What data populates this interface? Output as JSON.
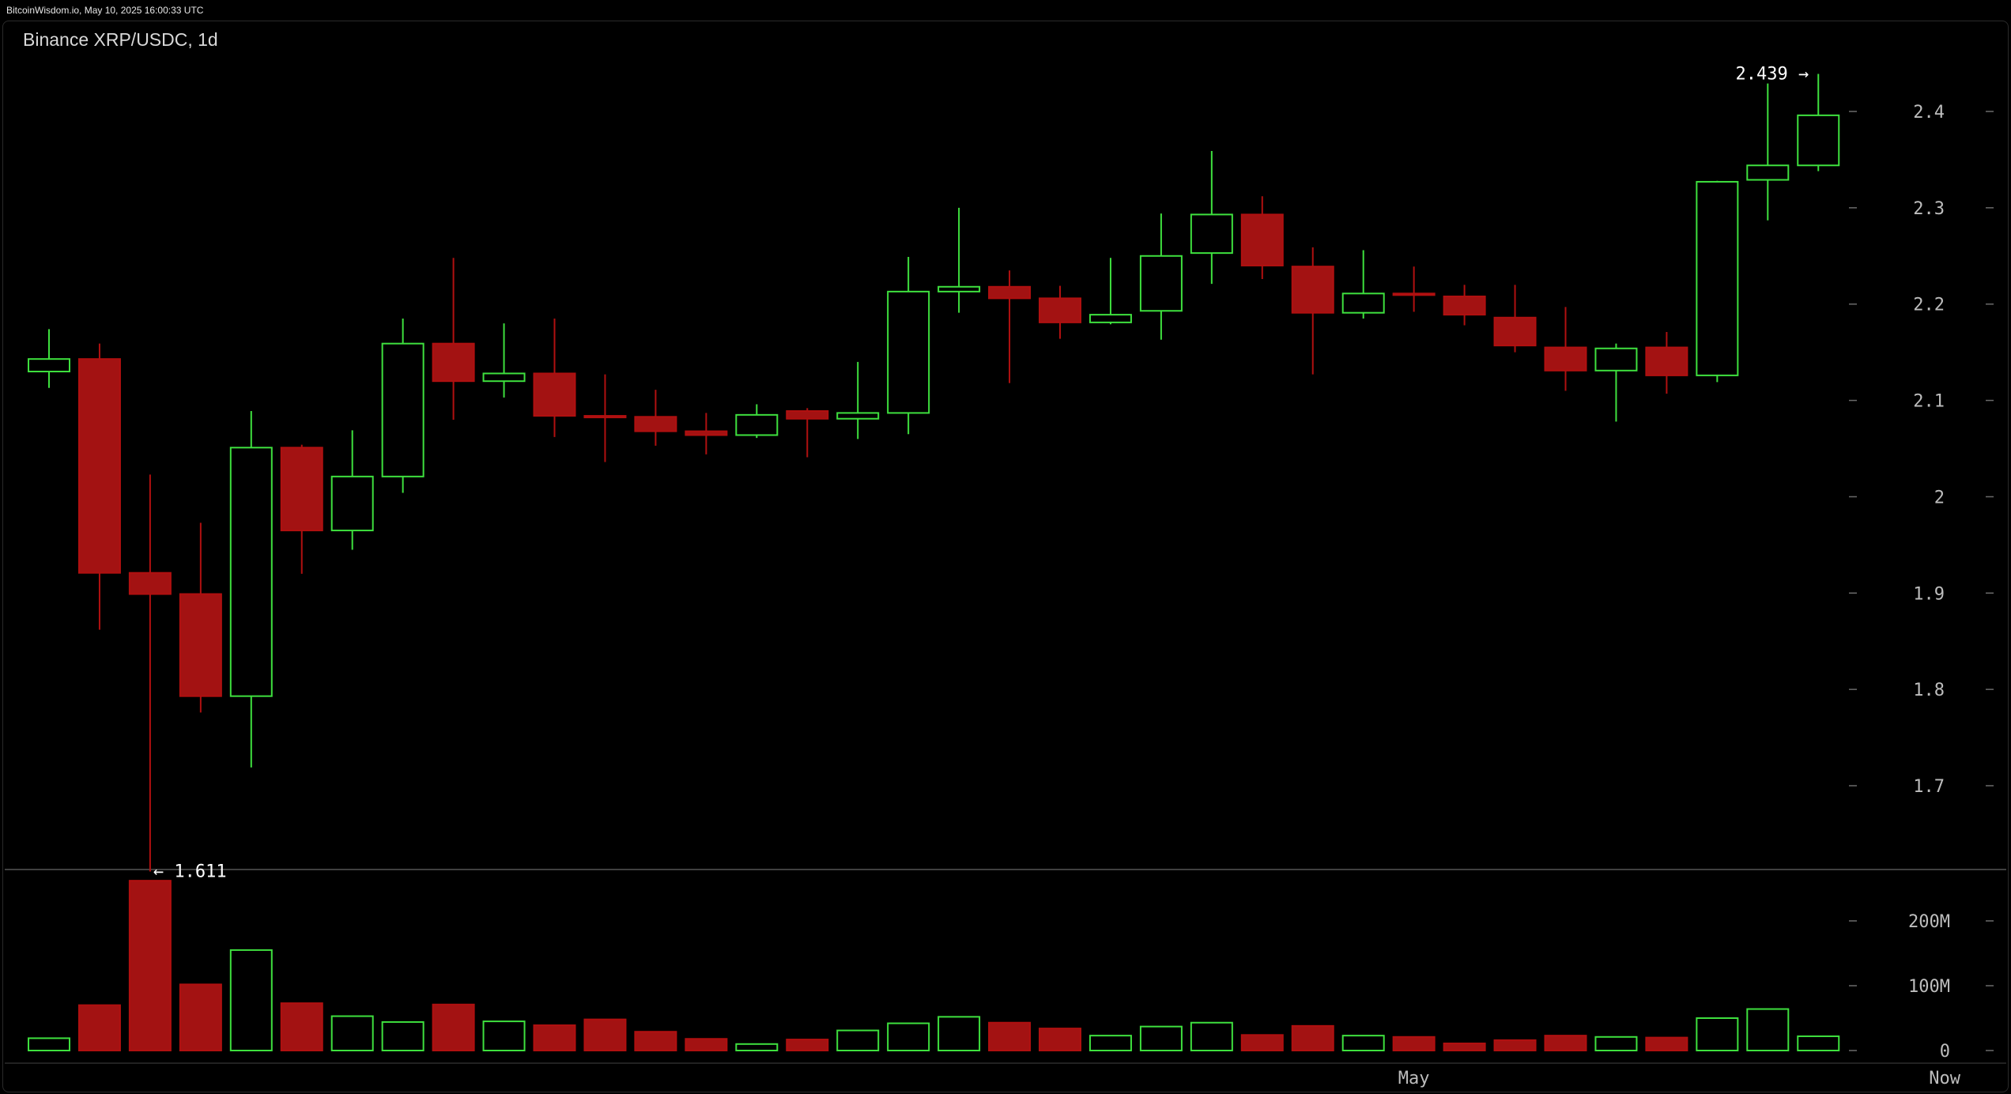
{
  "header": {
    "source_stamp": "BitcoinWisdom.io, May 10, 2025 16:00:33 UTC"
  },
  "title": "Binance XRP/USDC, 1d",
  "colors": {
    "up": "#3ee03e",
    "down": "#b01010",
    "down_fill": "#a31212",
    "axis_text": "#bdbdbd",
    "background": "#000000",
    "separator": "#555555"
  },
  "chart_data": {
    "type": "candlestick",
    "price_ticks": [
      "2.4",
      "2.3",
      "2.2",
      "2.1",
      "2",
      "1.9",
      "1.8",
      "1.7"
    ],
    "price_tick_values": [
      2.4,
      2.3,
      2.2,
      2.1,
      2.0,
      1.9,
      1.8,
      1.7
    ],
    "volume_ticks": [
      "200M",
      "100M",
      "0"
    ],
    "volume_tick_values": [
      200,
      100,
      0
    ],
    "volume_unit": "M",
    "x_labels": [
      "May",
      "Now"
    ],
    "x_label_candle_index": [
      27,
      37.5
    ],
    "annotations": {
      "high": "2.439 →",
      "low": "← 1.611",
      "high_value": 2.439,
      "low_value": 1.611
    },
    "candles": [
      {
        "o": 2.13,
        "h": 2.174,
        "l": 2.113,
        "c": 2.143,
        "v": 19
      },
      {
        "o": 2.143,
        "h": 2.159,
        "l": 1.862,
        "c": 1.921,
        "v": 70
      },
      {
        "o": 1.921,
        "h": 2.023,
        "l": 1.611,
        "c": 1.899,
        "v": 262
      },
      {
        "o": 1.899,
        "h": 1.973,
        "l": 1.776,
        "c": 1.793,
        "v": 102
      },
      {
        "o": 1.793,
        "h": 2.089,
        "l": 1.719,
        "c": 2.051,
        "v": 155
      },
      {
        "o": 2.051,
        "h": 2.054,
        "l": 1.92,
        "c": 1.965,
        "v": 73
      },
      {
        "o": 1.965,
        "h": 2.069,
        "l": 1.945,
        "c": 2.021,
        "v": 53
      },
      {
        "o": 2.021,
        "h": 2.185,
        "l": 2.004,
        "c": 2.159,
        "v": 44
      },
      {
        "o": 2.159,
        "h": 2.248,
        "l": 2.08,
        "c": 2.12,
        "v": 71
      },
      {
        "o": 2.12,
        "h": 2.18,
        "l": 2.103,
        "c": 2.128,
        "v": 45
      },
      {
        "o": 2.128,
        "h": 2.185,
        "l": 2.062,
        "c": 2.084,
        "v": 39
      },
      {
        "o": 2.084,
        "h": 2.127,
        "l": 2.036,
        "c": 2.083,
        "v": 48
      },
      {
        "o": 2.083,
        "h": 2.111,
        "l": 2.053,
        "c": 2.068,
        "v": 29
      },
      {
        "o": 2.068,
        "h": 2.087,
        "l": 2.044,
        "c": 2.064,
        "v": 18
      },
      {
        "o": 2.064,
        "h": 2.096,
        "l": 2.061,
        "c": 2.085,
        "v": 10
      },
      {
        "o": 2.089,
        "h": 2.092,
        "l": 2.041,
        "c": 2.081,
        "v": 17
      },
      {
        "o": 2.081,
        "h": 2.14,
        "l": 2.06,
        "c": 2.087,
        "v": 31
      },
      {
        "o": 2.087,
        "h": 2.249,
        "l": 2.065,
        "c": 2.213,
        "v": 42
      },
      {
        "o": 2.213,
        "h": 2.3,
        "l": 2.191,
        "c": 2.218,
        "v": 52
      },
      {
        "o": 2.218,
        "h": 2.235,
        "l": 2.118,
        "c": 2.206,
        "v": 43
      },
      {
        "o": 2.206,
        "h": 2.219,
        "l": 2.164,
        "c": 2.181,
        "v": 34
      },
      {
        "o": 2.181,
        "h": 2.248,
        "l": 2.179,
        "c": 2.189,
        "v": 23
      },
      {
        "o": 2.193,
        "h": 2.294,
        "l": 2.163,
        "c": 2.25,
        "v": 37
      },
      {
        "o": 2.253,
        "h": 2.359,
        "l": 2.221,
        "c": 2.293,
        "v": 43
      },
      {
        "o": 2.293,
        "h": 2.312,
        "l": 2.226,
        "c": 2.24,
        "v": 24
      },
      {
        "o": 2.239,
        "h": 2.259,
        "l": 2.127,
        "c": 2.191,
        "v": 38
      },
      {
        "o": 2.191,
        "h": 2.256,
        "l": 2.185,
        "c": 2.211,
        "v": 23
      },
      {
        "o": 2.211,
        "h": 2.239,
        "l": 2.192,
        "c": 2.21,
        "v": 21
      },
      {
        "o": 2.208,
        "h": 2.22,
        "l": 2.178,
        "c": 2.189,
        "v": 11
      },
      {
        "o": 2.186,
        "h": 2.22,
        "l": 2.15,
        "c": 2.157,
        "v": 16
      },
      {
        "o": 2.155,
        "h": 2.197,
        "l": 2.11,
        "c": 2.131,
        "v": 23
      },
      {
        "o": 2.131,
        "h": 2.159,
        "l": 2.078,
        "c": 2.154,
        "v": 21
      },
      {
        "o": 2.155,
        "h": 2.171,
        "l": 2.107,
        "c": 2.126,
        "v": 20
      },
      {
        "o": 2.126,
        "h": 2.328,
        "l": 2.119,
        "c": 2.327,
        "v": 50
      },
      {
        "o": 2.329,
        "h": 2.429,
        "l": 2.287,
        "c": 2.344,
        "v": 64
      },
      {
        "o": 2.344,
        "h": 2.439,
        "l": 2.338,
        "c": 2.396,
        "v": 22
      }
    ]
  }
}
